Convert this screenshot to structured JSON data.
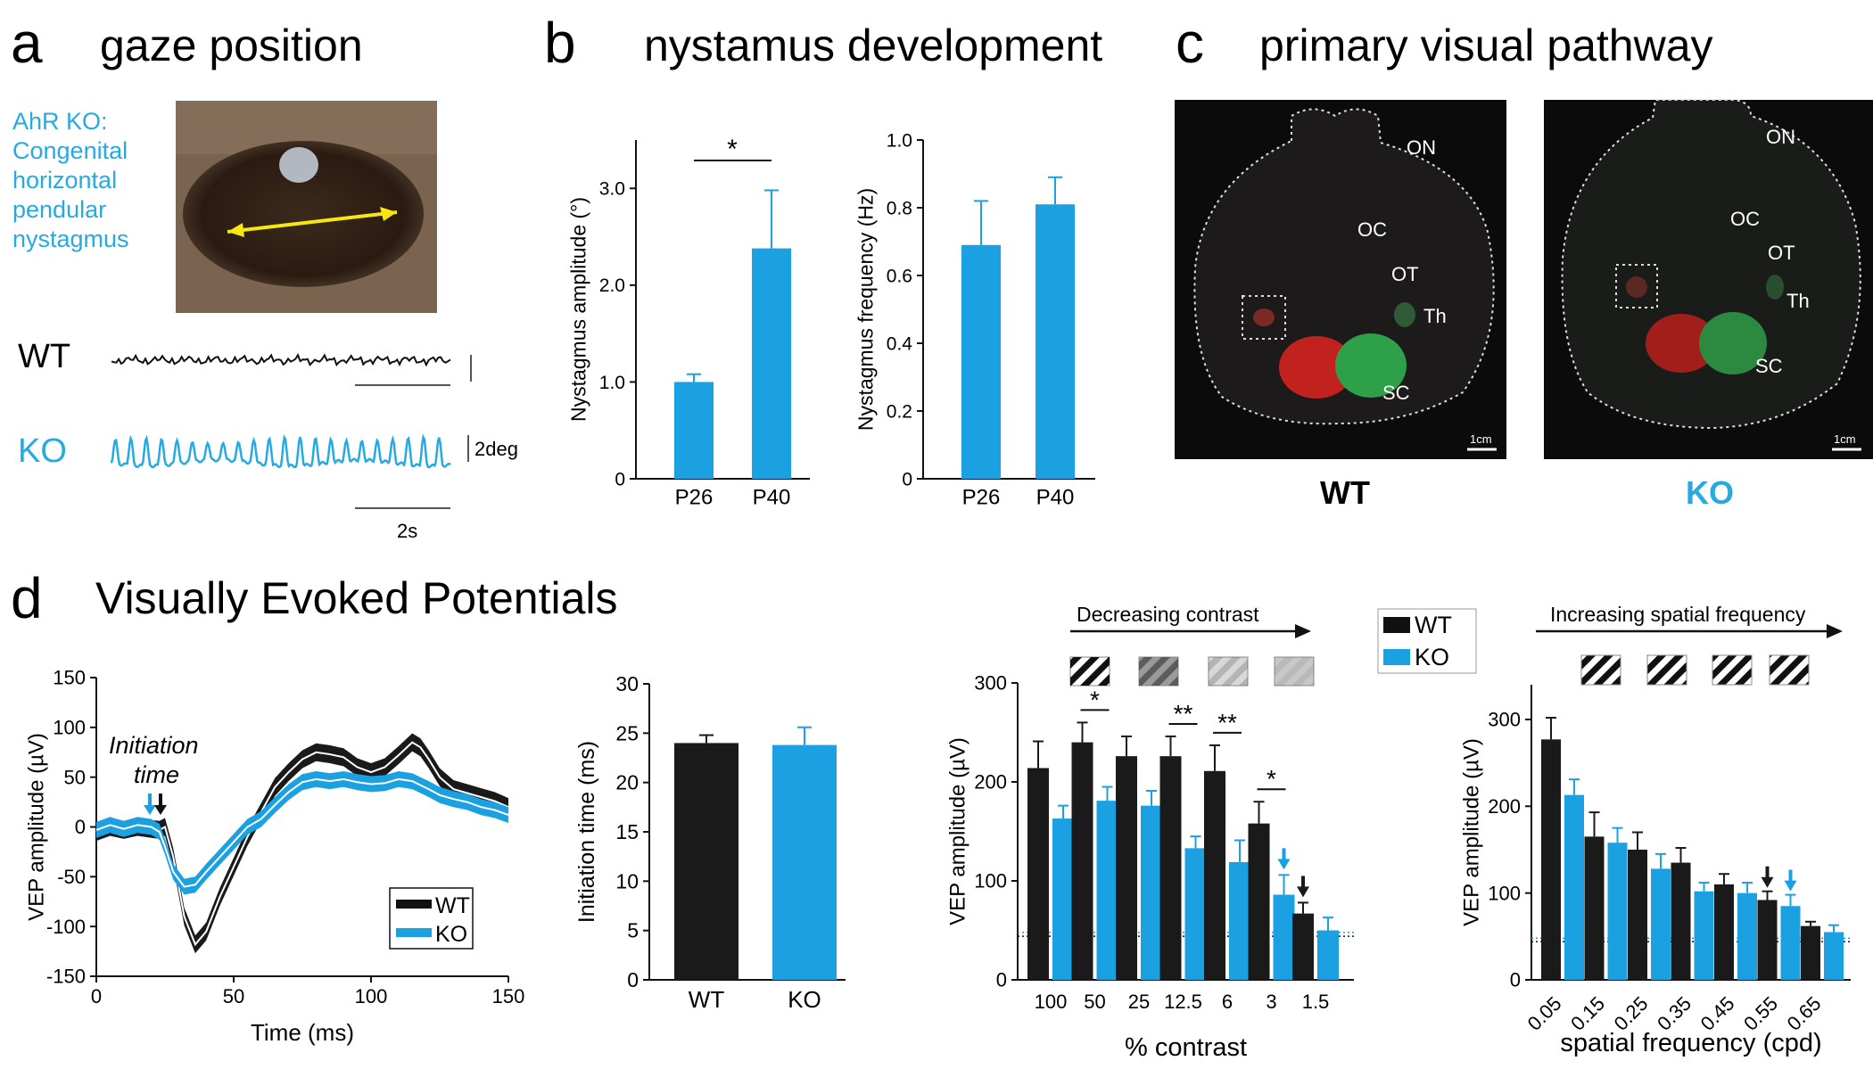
{
  "colors": {
    "wt": "#1a1a1a",
    "ko": "#1ba1e2",
    "label_ko": "#27a9e1"
  },
  "panels": {
    "a": {
      "letter": "a",
      "title": "gaze position",
      "annotation": [
        "AhR KO:",
        "Congenital",
        "horizontal",
        "pendular",
        "nystagmus"
      ],
      "trace_wt_label": "WT",
      "trace_ko_label": "KO",
      "scale_deg": "2deg",
      "scale_time": "2s"
    },
    "b": {
      "letter": "b",
      "title": "nystamus development"
    },
    "c": {
      "letter": "c",
      "title": "primary visual pathway",
      "image_wt_label": "WT",
      "image_ko_label": "KO",
      "structures_wt": [
        "ON",
        "OC",
        "OT",
        "Th",
        "SC"
      ],
      "structures_ko": [
        "ON",
        "OC",
        "OT",
        "Th",
        "SC"
      ],
      "scalebar": "1cm"
    },
    "d": {
      "letter": "d",
      "title": "Visually Evoked Potentials",
      "initiation_label_line1": "Initiation",
      "initiation_label_line2": "time",
      "contrast_arrow": "Decreasing contrast",
      "sf_arrow": "Increasing spatial frequency",
      "legend_wt": "WT",
      "legend_ko": "KO"
    }
  },
  "chart_data": [
    {
      "id": "b1",
      "type": "bar",
      "categories": [
        "P26",
        "P40"
      ],
      "values": [
        1.0,
        2.38
      ],
      "errors": [
        0.08,
        0.6
      ],
      "ylabel": "Nystagmus amplitude (°)",
      "ylim": [
        0,
        3.5
      ],
      "yticks": [
        "0",
        "1.0",
        "2.0",
        "3.0"
      ],
      "significance": "*"
    },
    {
      "id": "b2",
      "type": "bar",
      "categories": [
        "P26",
        "P40"
      ],
      "values": [
        0.69,
        0.81
      ],
      "errors": [
        0.13,
        0.08
      ],
      "ylabel": "Nystagmus frequency (Hz)",
      "ylim": [
        0,
        1.0
      ],
      "yticks": [
        "0",
        "0.2",
        "0.4",
        "0.6",
        "0.8",
        "1.0"
      ]
    },
    {
      "id": "d1",
      "type": "line",
      "xlabel": "Time (ms)",
      "ylabel": "VEP amplitude (µV)",
      "xlim": [
        0,
        150
      ],
      "ylim": [
        -150,
        150
      ],
      "xticks": [
        "0",
        "50",
        "100",
        "150"
      ],
      "yticks": [
        "-150",
        "-100",
        "-50",
        "0",
        "50",
        "100",
        "150"
      ],
      "x": [
        0,
        5,
        10,
        15,
        20,
        23,
        25,
        28,
        32,
        36,
        40,
        45,
        50,
        55,
        60,
        65,
        70,
        75,
        80,
        85,
        90,
        95,
        100,
        105,
        110,
        115,
        118,
        121,
        125,
        130,
        135,
        140,
        145,
        150
      ],
      "series": [
        {
          "name": "WT",
          "values": [
            -5,
            0,
            -3,
            0,
            -2,
            -3,
            0,
            -30,
            -90,
            -118,
            -105,
            -70,
            -40,
            -10,
            15,
            40,
            55,
            68,
            75,
            73,
            70,
            60,
            55,
            60,
            72,
            85,
            80,
            68,
            50,
            38,
            34,
            30,
            26,
            20
          ],
          "band": 9
        },
        {
          "name": "KO",
          "values": [
            -3,
            2,
            -2,
            2,
            0,
            -5,
            -20,
            -45,
            -60,
            -58,
            -45,
            -30,
            -15,
            0,
            8,
            22,
            35,
            45,
            48,
            46,
            48,
            45,
            43,
            44,
            48,
            46,
            42,
            38,
            32,
            28,
            25,
            20,
            17,
            12
          ],
          "band": 8
        }
      ]
    },
    {
      "id": "d2",
      "type": "bar",
      "categories": [
        "WT",
        "KO"
      ],
      "values": [
        24.0,
        23.8
      ],
      "errors": [
        0.8,
        1.8
      ],
      "ylabel": "Initiation time (ms)",
      "ylim": [
        0,
        30
      ],
      "yticks": [
        "0",
        "5",
        "10",
        "15",
        "20",
        "25",
        "30"
      ]
    },
    {
      "id": "d3",
      "type": "bar",
      "categories": [
        "100",
        "50",
        "25",
        "12.5",
        "6",
        "3",
        "1.5"
      ],
      "xlabel": "% contrast",
      "ylabel": "VEP amplitude (µV)",
      "ylim": [
        0,
        300
      ],
      "yticks": [
        "0",
        "100",
        "200",
        "300"
      ],
      "series": [
        {
          "name": "WT",
          "values": [
            214,
            240,
            226,
            226,
            211,
            158,
            67
          ],
          "errors": [
            27,
            20,
            20,
            20,
            26,
            22,
            11
          ]
        },
        {
          "name": "KO",
          "values": [
            163,
            181,
            176,
            133,
            119,
            86,
            50
          ],
          "errors": [
            13,
            14,
            15,
            12,
            22,
            20,
            13
          ]
        }
      ],
      "significance": [
        "",
        "*",
        "",
        "**",
        "**",
        "*",
        ""
      ],
      "baseline_wt": 44,
      "baseline_ko": 48
    },
    {
      "id": "d4",
      "type": "bar",
      "categories": [
        "0.05",
        "0.15",
        "0.25",
        "0.35",
        "0.45",
        "0.55",
        "0.65"
      ],
      "xlabel": "spatial frequency (cpd)",
      "ylabel": "VEP amplitude (µV)",
      "ylim": [
        0,
        340
      ],
      "yticks": [
        "0",
        "100",
        "200",
        "300"
      ],
      "series": [
        {
          "name": "WT",
          "values": [
            277,
            165,
            150,
            135,
            110,
            92,
            62
          ],
          "errors": [
            25,
            28,
            20,
            17,
            12,
            10,
            5
          ]
        },
        {
          "name": "KO",
          "values": [
            213,
            158,
            128,
            102,
            100,
            85,
            55
          ],
          "errors": [
            18,
            17,
            17,
            10,
            12,
            13,
            8
          ]
        }
      ],
      "baseline_wt": 44,
      "baseline_ko": 48
    }
  ]
}
